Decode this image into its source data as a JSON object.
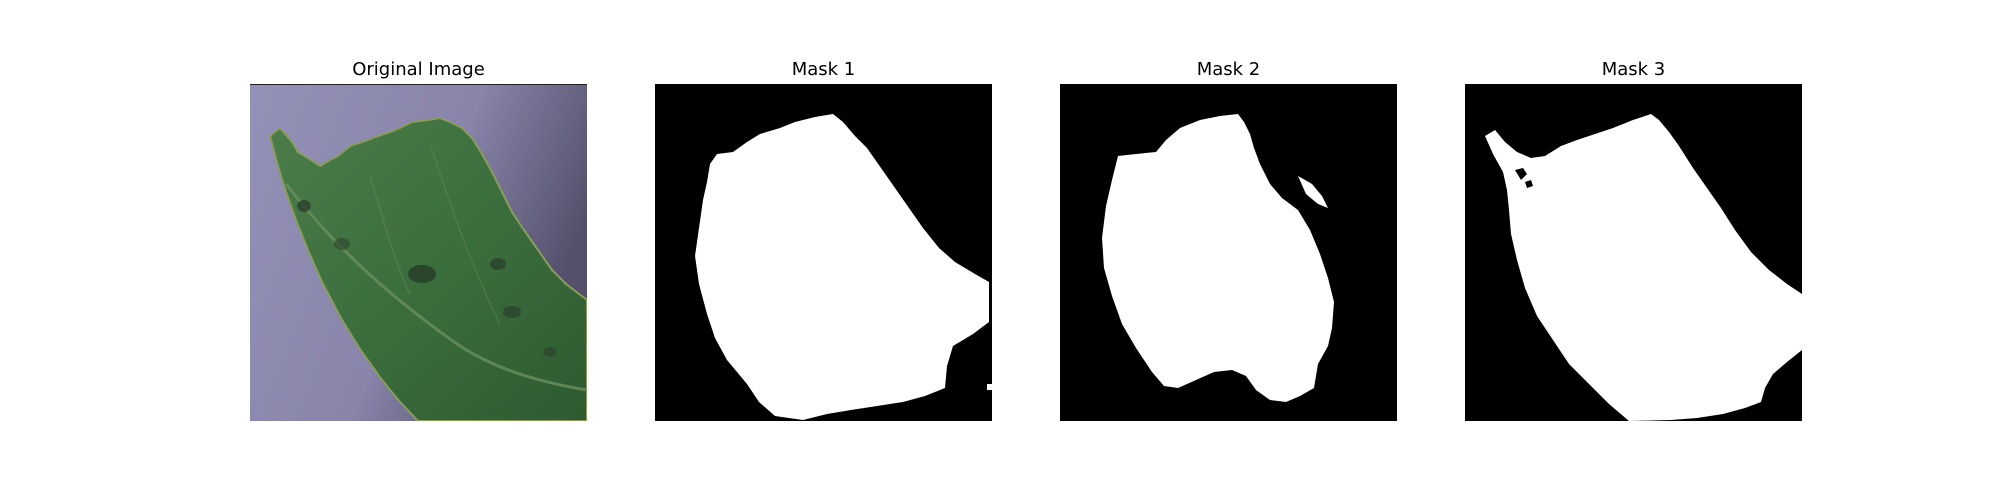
{
  "figure": {
    "panels": [
      {
        "title": "Original Image"
      },
      {
        "title": "Mask 1"
      },
      {
        "title": "Mask 2"
      },
      {
        "title": "Mask 3"
      }
    ]
  },
  "colors": {
    "mask_background": "#000000",
    "mask_foreground": "#ffffff",
    "leaf_dark": "#2f5a2f",
    "leaf_mid": "#3f7440",
    "leaf_light": "#5e8e58",
    "surface": "#8c88ae",
    "surface_shadow": "#5a5675"
  }
}
